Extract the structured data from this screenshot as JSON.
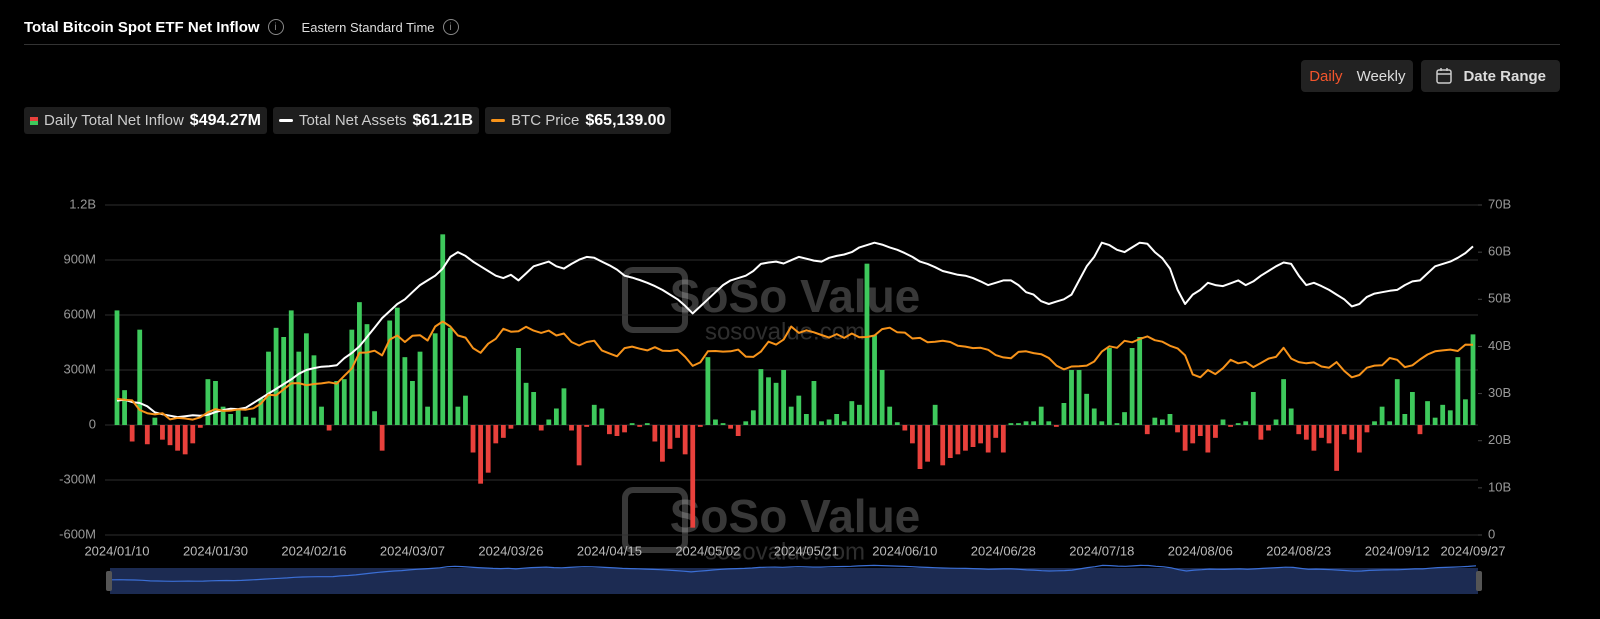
{
  "header": {
    "title": "Total Bitcoin Spot ETF Net Inflow",
    "timezone": "Eastern Standard Time"
  },
  "controls": {
    "daily": "Daily",
    "weekly": "Weekly",
    "date_range": "Date Range"
  },
  "watermark": {
    "brand": "SoSo Value",
    "url": "sosovalue.com"
  },
  "chart_data": {
    "type": "bar",
    "categories": [
      "2024/01/10",
      null,
      null,
      null,
      null,
      null,
      null,
      null,
      null,
      null,
      null,
      null,
      null,
      "2024/01/30",
      null,
      null,
      null,
      null,
      null,
      null,
      null,
      null,
      null,
      null,
      null,
      null,
      "2024/02/16",
      null,
      null,
      null,
      null,
      null,
      null,
      null,
      null,
      null,
      null,
      null,
      null,
      "2024/03/07",
      null,
      null,
      null,
      null,
      null,
      null,
      null,
      null,
      null,
      null,
      null,
      null,
      "2024/03/26",
      null,
      null,
      null,
      null,
      null,
      null,
      null,
      null,
      null,
      null,
      null,
      null,
      "2024/04/15",
      null,
      null,
      null,
      null,
      null,
      null,
      null,
      null,
      null,
      null,
      null,
      null,
      "2024/05/02",
      null,
      null,
      null,
      null,
      null,
      null,
      null,
      null,
      null,
      null,
      null,
      null,
      "2024/05/21",
      null,
      null,
      null,
      null,
      null,
      null,
      null,
      null,
      null,
      null,
      null,
      null,
      "2024/06/10",
      null,
      null,
      null,
      null,
      null,
      null,
      null,
      null,
      null,
      null,
      null,
      null,
      "2024/06/28",
      null,
      null,
      null,
      null,
      null,
      null,
      null,
      null,
      null,
      null,
      null,
      null,
      "2024/07/18",
      null,
      null,
      null,
      null,
      null,
      null,
      null,
      null,
      null,
      null,
      null,
      null,
      "2024/08/06",
      null,
      null,
      null,
      null,
      null,
      null,
      null,
      null,
      null,
      null,
      null,
      null,
      "2024/08/23",
      null,
      null,
      null,
      null,
      null,
      null,
      null,
      null,
      null,
      null,
      null,
      null,
      "2024/09/12",
      null,
      null,
      null,
      null,
      null,
      null,
      null,
      null,
      null,
      "2024/09/27"
    ],
    "ylim": [
      -600,
      1200
    ],
    "yticks": [
      {
        "value": -600,
        "label": "-600M"
      },
      {
        "value": -300,
        "label": "-300M"
      },
      0,
      {
        "value": 300,
        "label": "300M"
      },
      {
        "value": 600,
        "label": "600M"
      },
      {
        "value": 900,
        "label": "900M"
      },
      {
        "value": 1200,
        "label": "1.2B"
      }
    ],
    "y2lim": [
      0,
      70
    ],
    "y2ticks": [
      0,
      {
        "value": 10,
        "label": "10B"
      },
      {
        "value": 20,
        "label": "20B"
      },
      {
        "value": 30,
        "label": "30B"
      },
      {
        "value": 40,
        "label": "40B"
      },
      {
        "value": 50,
        "label": "50B"
      },
      {
        "value": 60,
        "label": "60B"
      },
      {
        "value": 70,
        "label": "70B"
      }
    ],
    "y3lim": [
      0,
      113000
    ],
    "grid": true,
    "series": [
      {
        "name": "Daily Total Net Inflow",
        "value_label": "$494.27M",
        "type": "bar",
        "color": "#3ec95c",
        "negative_color": "#e8413c",
        "values": [
          625,
          190,
          -90,
          520,
          -105,
          40,
          -80,
          -110,
          -140,
          -160,
          -100,
          -15,
          250,
          240,
          100,
          60,
          80,
          45,
          40,
          145,
          400,
          530,
          480,
          625,
          400,
          500,
          380,
          100,
          -30,
          240,
          250,
          520,
          670,
          550,
          75,
          -140,
          570,
          640,
          370,
          240,
          400,
          100,
          500,
          1040,
          530,
          100,
          160,
          -150,
          -320,
          -260,
          -100,
          -70,
          -20,
          420,
          230,
          180,
          -30,
          30,
          90,
          200,
          -30,
          -220,
          -10,
          110,
          90,
          -50,
          -60,
          -40,
          10,
          -10,
          10,
          -90,
          -200,
          -130,
          -70,
          -160,
          -560,
          -10,
          370,
          30,
          10,
          -20,
          -60,
          20,
          80,
          305,
          260,
          230,
          300,
          100,
          160,
          60,
          240,
          20,
          30,
          60,
          20,
          130,
          110,
          880,
          490,
          300,
          100,
          15,
          -30,
          -100,
          -240,
          -200,
          110,
          -220,
          -180,
          -160,
          -140,
          -120,
          -100,
          -150,
          -70,
          -150,
          10,
          10,
          20,
          20,
          100,
          20,
          -10,
          120,
          300,
          300,
          170,
          90,
          20,
          420,
          10,
          70,
          420,
          480,
          -50,
          40,
          30,
          60,
          -40,
          -140,
          -100,
          -60,
          -150,
          -70,
          30,
          -10,
          10,
          20,
          180,
          -80,
          -30,
          30,
          250,
          90,
          -50,
          -80,
          -140,
          -70,
          -100,
          -250,
          -50,
          -80,
          -150,
          -40,
          20,
          100,
          20,
          250,
          60,
          180,
          -50,
          130,
          40,
          110,
          80,
          370,
          140,
          494.27
        ]
      },
      {
        "name": "Total Net Assets",
        "value_label": "$61.21B",
        "type": "line",
        "color": "#ffffff",
        "axis": "y2",
        "values": [
          28.5,
          28.7,
          28.2,
          28,
          27.3,
          26,
          25.6,
          25.3,
          25,
          25.2,
          25.4,
          25.3,
          25.5,
          26.1,
          26.5,
          26.8,
          26.7,
          27,
          28,
          29,
          30,
          31,
          32,
          33,
          34.2,
          35,
          35.4,
          35.7,
          35.8,
          36,
          37.5,
          38.6,
          40,
          42,
          44,
          46,
          47.5,
          49,
          50,
          51.5,
          53,
          54,
          55,
          56.5,
          59,
          60,
          59.2,
          58,
          57,
          56,
          55,
          54.5,
          55.2,
          54,
          55.5,
          57,
          57.5,
          58,
          57,
          56.5,
          57.5,
          58.4,
          59,
          58.8,
          58,
          57.2,
          56.3,
          55,
          54.6,
          54.1,
          53.5,
          52.8,
          52,
          51,
          50,
          48.6,
          47,
          48.5,
          50,
          51.5,
          53,
          54,
          54.5,
          55,
          56,
          57.5,
          57.8,
          58,
          57.6,
          58.3,
          59,
          58.6,
          58.2,
          58,
          58.8,
          59.2,
          59.5,
          60,
          61,
          61.5,
          62,
          61.6,
          61,
          60.5,
          59.8,
          59,
          58,
          57.5,
          56.8,
          56,
          55.6,
          55.2,
          55,
          54.5,
          53.8,
          53,
          53.5,
          54,
          54,
          53,
          51.5,
          51,
          49.6,
          49,
          49.5,
          50,
          51,
          54,
          57,
          59,
          62,
          61.5,
          60.5,
          60,
          61,
          62,
          61.8,
          60,
          58.7,
          56.5,
          52,
          49,
          51,
          52,
          53.5,
          53,
          52.8,
          53.4,
          54,
          53,
          53.8,
          55,
          56,
          57,
          57.8,
          57.5,
          55,
          53,
          53.5,
          52.8,
          52,
          51,
          50,
          48.5,
          49,
          50.5,
          51.2,
          51.5,
          51.8,
          52,
          53,
          53.8,
          54,
          55.5,
          57,
          57.5,
          58,
          58.8,
          59.8,
          61.21
        ]
      },
      {
        "name": "BTC Price",
        "value_label": "$65,139.00",
        "type": "line",
        "color": "#f7931a",
        "axis": "y3",
        "values": [
          46600,
          46300,
          46100,
          42800,
          41700,
          41300,
          41700,
          39600,
          40100,
          39900,
          39500,
          40300,
          42000,
          43100,
          42500,
          42600,
          43000,
          42900,
          43400,
          45000,
          48000,
          47800,
          49900,
          51900,
          52000,
          51300,
          51700,
          51900,
          52300,
          51800,
          54500,
          57000,
          62400,
          62500,
          63100,
          61500,
          66900,
          68300,
          66100,
          68200,
          68400,
          66600,
          71400,
          73100,
          71400,
          68300,
          67600,
          64000,
          62400,
          65500,
          67200,
          70600,
          69600,
          69800,
          71300,
          70000,
          69200,
          70000,
          68300,
          69000,
          66100,
          64900,
          66100,
          66500,
          63200,
          62200,
          61200,
          64000,
          64500,
          63800,
          63200,
          64300,
          63100,
          63000,
          63400,
          61000,
          57900,
          59100,
          62900,
          63000,
          62800,
          62900,
          63500,
          61100,
          61000,
          62800,
          66200,
          65200,
          66900,
          71400,
          69200,
          70100,
          69400,
          68500,
          67600,
          68800,
          67500,
          69000,
          67700,
          67800,
          68300,
          70500,
          71000,
          69400,
          69300,
          67300,
          67500,
          66000,
          66200,
          66500,
          66100,
          64800,
          64500,
          64000,
          64100,
          63400,
          61600,
          60800,
          60500,
          62700,
          62900,
          62300,
          61900,
          60600,
          58000,
          56700,
          57700,
          57800,
          58000,
          59400,
          62800,
          64600,
          64100,
          66500,
          66000,
          67100,
          68000,
          66700,
          66200,
          64800,
          63900,
          61500,
          55000,
          54000,
          56500,
          55100,
          57100,
          60000,
          58800,
          59300,
          57500,
          58900,
          60400,
          61000,
          64100,
          60400,
          59200,
          58800,
          59100,
          57700,
          57300,
          59200,
          56200,
          54000,
          54800,
          57300,
          58000,
          58100,
          60600,
          60000,
          57500,
          58100,
          60100,
          61800,
          62900,
          63200,
          63500,
          63000,
          65200,
          65139
        ]
      }
    ]
  }
}
